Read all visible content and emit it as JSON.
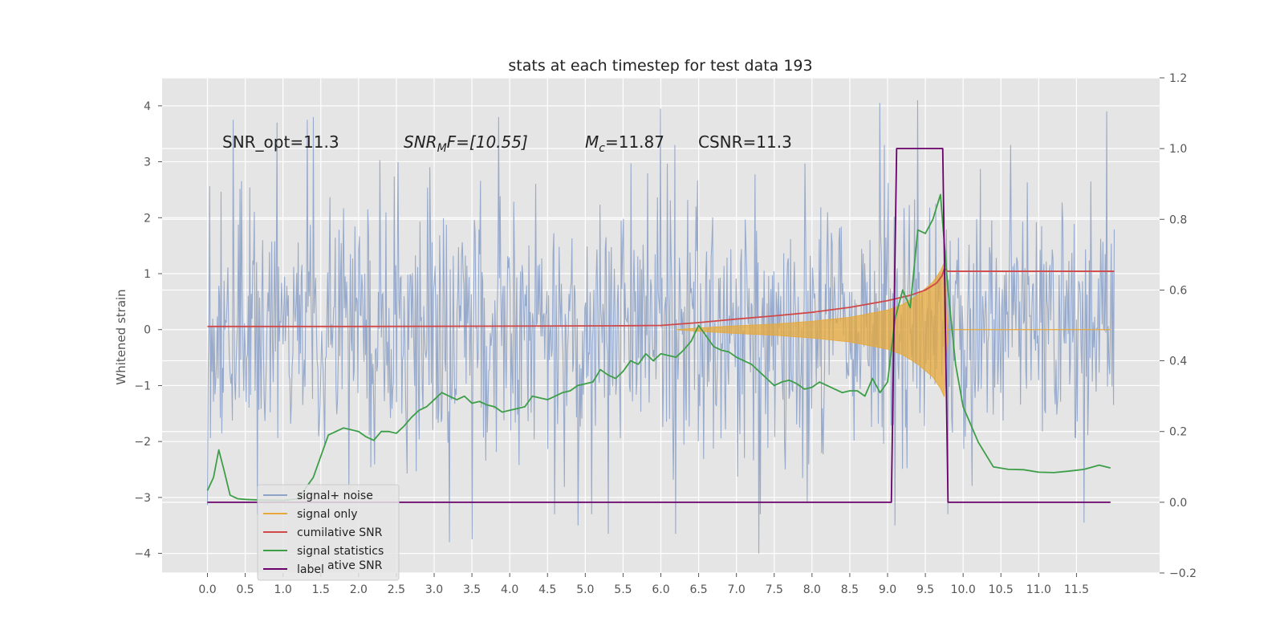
{
  "chart_data": {
    "type": "line",
    "title": "stats at each timestep for test data 193",
    "xlabel": "",
    "ylabel": "Whitened strain",
    "xlim": [
      -0.6,
      12.6
    ],
    "ylim": [
      -4.35,
      4.5
    ],
    "y2lim": [
      -0.2,
      1.2
    ],
    "x_ticks": [
      0.0,
      0.5,
      1.0,
      1.5,
      2.0,
      2.5,
      3.0,
      3.5,
      4.0,
      4.5,
      5.0,
      5.5,
      6.0,
      6.5,
      7.0,
      7.5,
      8.0,
      8.5,
      9.0,
      9.5,
      10.0,
      10.5,
      11.0,
      11.5
    ],
    "x_tick_labels": [
      "0.0",
      "0.5",
      "1.0",
      "1.5",
      "2.0",
      "2.5",
      "3.0",
      "3.5",
      "4.0",
      "4.5",
      "5.0",
      "5.5",
      "6.0",
      "6.5",
      "7.0",
      "7.5",
      "8.0",
      "8.5",
      "9.0",
      "9.5",
      "10.0",
      "10.5",
      "11.0",
      "11.5"
    ],
    "y_ticks": [
      -4,
      -3,
      -2,
      -1,
      0,
      1,
      2,
      3,
      4
    ],
    "y_tick_labels": [
      "−4",
      "−3",
      "−2",
      "−1",
      "0",
      "1",
      "2",
      "3",
      "4"
    ],
    "y2_ticks": [
      -0.2,
      0.0,
      0.2,
      0.4,
      0.6,
      0.8,
      1.0,
      1.2
    ],
    "y2_tick_labels": [
      "−0.2",
      "0.0",
      "0.2",
      "0.4",
      "0.6",
      "0.8",
      "1.0",
      "1.2"
    ],
    "grid": true,
    "legend_position": "lower-left",
    "colors": {
      "signal_noise": "#8ea3c8",
      "signal_only": "#e6a83a",
      "cumulative_snr": "#d04848",
      "signal_statistics": "#3d9e48",
      "label": "#6a006a",
      "plot_background": "#e5e5e5",
      "grid": "#ffffff"
    },
    "annotations": {
      "snr_opt": "SNR_opt=11.3",
      "snr_mf_name": "SNR",
      "snr_mf_sub": "M",
      "snr_mf_rest": "F=[10.55]",
      "mc_name": "M",
      "mc_sub": "c",
      "mc_rest": "=11.87",
      "csnr": "CSNR=11.3"
    },
    "series": [
      {
        "name": "signal+ noise",
        "axis": "left",
        "noise": {
          "x_start": 0.0,
          "x_end": 12.0,
          "std": 1.0,
          "n_points": 1200
        },
        "spike_values": [
          {
            "x": 0.34,
            "y": 3.75
          },
          {
            "x": 0.92,
            "y": 3.7
          },
          {
            "x": 1.32,
            "y": 3.75
          },
          {
            "x": 1.4,
            "y": 3.8
          },
          {
            "x": 3.85,
            "y": 3.8
          },
          {
            "x": 6.0,
            "y": 3.95
          },
          {
            "x": 6.2,
            "y": -3.65
          },
          {
            "x": 7.3,
            "y": -4.0
          },
          {
            "x": 8.9,
            "y": 4.05
          },
          {
            "x": 9.4,
            "y": 4.1
          },
          {
            "x": 11.9,
            "y": 3.9
          },
          {
            "x": 3.2,
            "y": -3.8
          },
          {
            "x": 3.5,
            "y": -3.75
          },
          {
            "x": 4.9,
            "y": -3.5
          },
          {
            "x": 5.3,
            "y": -3.65
          },
          {
            "x": 9.1,
            "y": -3.5
          },
          {
            "x": 11.6,
            "y": -3.45
          }
        ]
      },
      {
        "name": "signal only",
        "axis": "left",
        "envelope": {
          "x": [
            6.2,
            6.5,
            7.0,
            7.5,
            8.0,
            8.5,
            9.0,
            9.2,
            9.4,
            9.6,
            9.7,
            9.75,
            9.8
          ],
          "y": [
            0.0,
            0.03,
            0.07,
            0.1,
            0.15,
            0.22,
            0.35,
            0.45,
            0.62,
            0.85,
            1.05,
            1.2,
            0.0
          ]
        }
      },
      {
        "name": "cumilative SNR",
        "axis": "right",
        "x": [
          0.0,
          2.0,
          4.0,
          5.5,
          6.0,
          6.5,
          7.0,
          7.5,
          8.0,
          8.5,
          9.0,
          9.3,
          9.5,
          9.65,
          9.72,
          9.75,
          9.8,
          12.0
        ],
        "y": [
          0.497,
          0.497,
          0.498,
          0.499,
          0.5,
          0.508,
          0.518,
          0.527,
          0.537,
          0.551,
          0.57,
          0.585,
          0.6,
          0.62,
          0.64,
          0.66,
          0.653,
          0.653
        ]
      },
      {
        "name": "signal statistics",
        "axis": "right",
        "x": [
          0.0,
          0.08,
          0.15,
          0.22,
          0.3,
          0.4,
          0.5,
          0.6,
          0.75,
          1.0,
          1.2,
          1.4,
          1.5,
          1.6,
          1.7,
          1.8,
          1.9,
          2.0,
          2.1,
          2.2,
          2.3,
          2.4,
          2.5,
          2.6,
          2.7,
          2.8,
          2.9,
          3.0,
          3.1,
          3.2,
          3.3,
          3.4,
          3.5,
          3.6,
          3.7,
          3.8,
          3.9,
          4.0,
          4.1,
          4.2,
          4.3,
          4.4,
          4.5,
          4.6,
          4.7,
          4.8,
          4.9,
          5.0,
          5.1,
          5.2,
          5.3,
          5.4,
          5.5,
          5.6,
          5.7,
          5.8,
          5.9,
          6.0,
          6.1,
          6.2,
          6.3,
          6.4,
          6.5,
          6.6,
          6.7,
          6.8,
          6.9,
          7.0,
          7.1,
          7.2,
          7.3,
          7.4,
          7.5,
          7.6,
          7.7,
          7.8,
          7.9,
          8.0,
          8.1,
          8.2,
          8.3,
          8.4,
          8.5,
          8.6,
          8.7,
          8.8,
          8.9,
          9.0,
          9.1,
          9.2,
          9.3,
          9.4,
          9.5,
          9.6,
          9.7,
          9.8,
          9.9,
          10.0,
          10.2,
          10.4,
          10.6,
          10.8,
          11.0,
          11.2,
          11.4,
          11.6,
          11.8,
          11.95
        ],
        "y": [
          0.033,
          0.07,
          0.148,
          0.09,
          0.02,
          0.01,
          0.008,
          0.007,
          0.006,
          0.005,
          0.01,
          0.07,
          0.13,
          0.19,
          0.2,
          0.21,
          0.205,
          0.2,
          0.185,
          0.175,
          0.2,
          0.2,
          0.195,
          0.215,
          0.24,
          0.26,
          0.27,
          0.29,
          0.31,
          0.3,
          0.29,
          0.3,
          0.28,
          0.285,
          0.275,
          0.27,
          0.255,
          0.26,
          0.265,
          0.27,
          0.3,
          0.295,
          0.29,
          0.3,
          0.31,
          0.315,
          0.33,
          0.335,
          0.34,
          0.375,
          0.36,
          0.35,
          0.37,
          0.4,
          0.39,
          0.42,
          0.4,
          0.42,
          0.415,
          0.41,
          0.43,
          0.455,
          0.5,
          0.47,
          0.44,
          0.43,
          0.425,
          0.41,
          0.4,
          0.39,
          0.37,
          0.35,
          0.33,
          0.34,
          0.345,
          0.335,
          0.32,
          0.325,
          0.34,
          0.33,
          0.32,
          0.31,
          0.315,
          0.315,
          0.3,
          0.35,
          0.31,
          0.34,
          0.52,
          0.6,
          0.55,
          0.77,
          0.76,
          0.8,
          0.87,
          0.6,
          0.39,
          0.27,
          0.17,
          0.1,
          0.093,
          0.092,
          0.085,
          0.084,
          0.088,
          0.093,
          0.105,
          0.097
        ]
      },
      {
        "name": "label",
        "axis": "right",
        "x": [
          0.0,
          9.05,
          9.12,
          9.73,
          9.8,
          11.95
        ],
        "y": [
          0.0,
          0.0,
          1.0,
          1.0,
          0.0,
          0.0
        ]
      }
    ],
    "legend": [
      "signal+ noise",
      "signal only",
      "cumilative SNR",
      "signal statistics",
      "label"
    ],
    "legend_ghost_text": "cumilative SNR"
  }
}
